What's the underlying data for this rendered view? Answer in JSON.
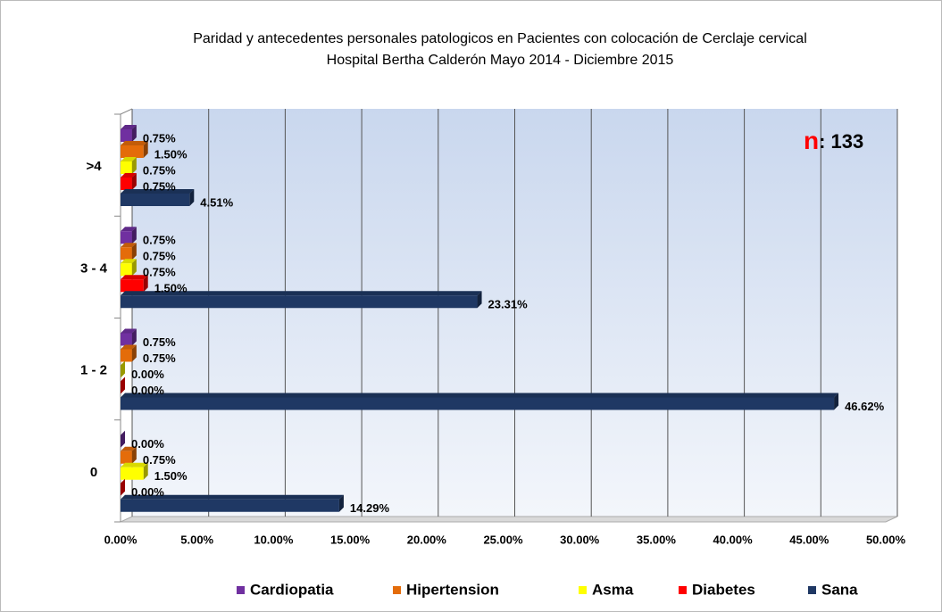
{
  "chart_data": {
    "type": "bar",
    "orientation": "horizontal",
    "title": "Paridad y antecedentes personales patologicos en Pacientes con colocación de Cerclaje cervical",
    "subtitle": "Hospital Bertha Calderón  Mayo 2014 - Diciembre 2015",
    "annotation": {
      "symbol": "n",
      "text": ": 133"
    },
    "categories": [
      "0",
      "1 - 2",
      "3 - 4",
      ">4"
    ],
    "series": [
      {
        "name": "Cardiopatia",
        "color": "#7030a0",
        "values": [
          0,
          0.75,
          0.75,
          0.75
        ],
        "value_labels": [
          "0.00%",
          "0.75%",
          "0.75%",
          "0.75%"
        ]
      },
      {
        "name": "Hipertension",
        "color": "#e46c0a",
        "values": [
          0.75,
          0.75,
          0.75,
          1.5
        ],
        "value_labels": [
          "0.75%",
          "0.75%",
          "0.75%",
          "1.50%"
        ]
      },
      {
        "name": "Asma",
        "color": "#ffff00",
        "values": [
          1.5,
          0,
          0.75,
          0.75
        ],
        "value_labels": [
          "1.50%",
          "0.00%",
          "0.75%",
          "0.75%"
        ]
      },
      {
        "name": "Diabetes",
        "color": "#ff0000",
        "values": [
          0,
          0,
          1.5,
          0.75
        ],
        "value_labels": [
          "0.00%",
          "0.00%",
          "1.50%",
          "0.75%"
        ]
      },
      {
        "name": "Sana",
        "color": "#1f3864",
        "values": [
          14.29,
          46.62,
          23.31,
          4.51
        ],
        "value_labels": [
          "14.29%",
          "46.62%",
          "23.31%",
          "4.51%"
        ]
      }
    ],
    "xlim": [
      0,
      50
    ],
    "xticks": [
      {
        "value": 0,
        "label": "0.00%"
      },
      {
        "value": 5,
        "label": "5.00%"
      },
      {
        "value": 10,
        "label": "10.00%"
      },
      {
        "value": 15,
        "label": "15.00%"
      },
      {
        "value": 20,
        "label": "20.00%"
      },
      {
        "value": 25,
        "label": "25.00%"
      },
      {
        "value": 30,
        "label": "30.00%"
      },
      {
        "value": 35,
        "label": "35.00%"
      },
      {
        "value": 40,
        "label": "40.00%"
      },
      {
        "value": 45,
        "label": "45.00%"
      },
      {
        "value": 50,
        "label": "50.00%"
      }
    ],
    "grid": true,
    "legend": "bottom"
  }
}
